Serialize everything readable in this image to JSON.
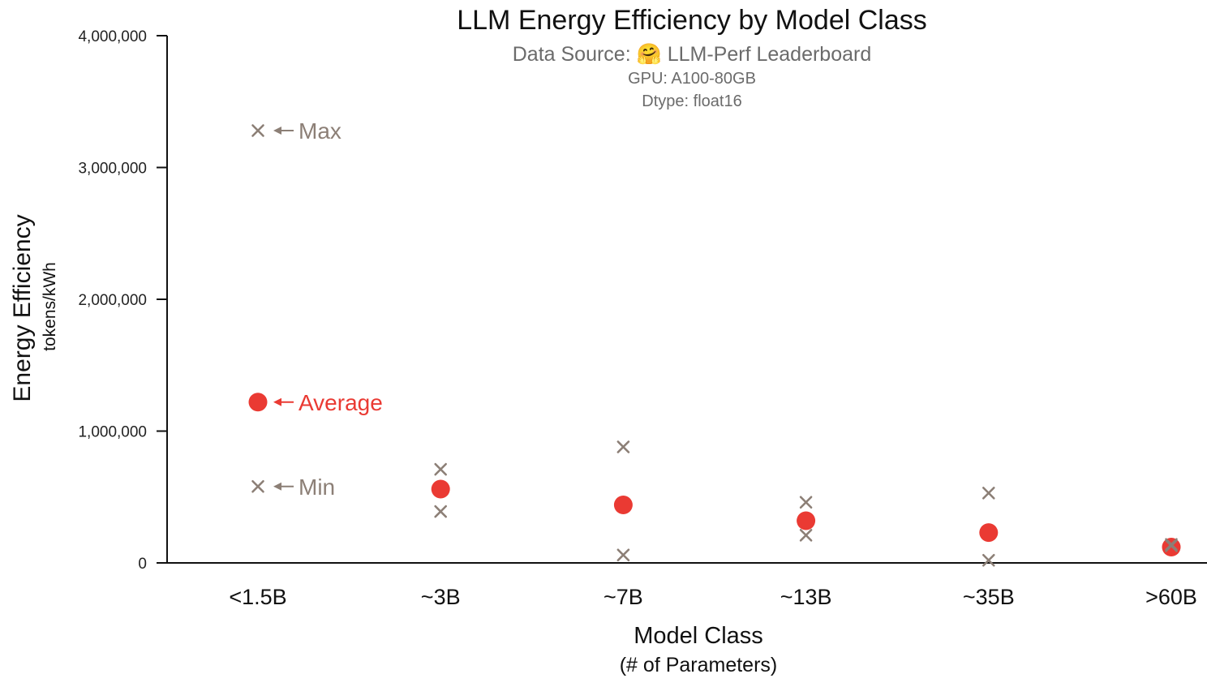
{
  "chart_data": {
    "type": "scatter",
    "title": "LLM Energy Efficiency by Model Class",
    "subtitle": {
      "source_prefix": "Data Source:",
      "source_emoji": "🤗",
      "source_name": "LLM-Perf Leaderboard",
      "gpu": "GPU: A100-80GB",
      "dtype": "Dtype: float16"
    },
    "xlabel": "Model Class",
    "xlabel_sub": "(# of Parameters)",
    "ylabel": "Energy Efficiency",
    "ylabel_unit": "tokens/kWh",
    "categories": [
      "<1.5B",
      "~3B",
      "~7B",
      "~13B",
      "~35B",
      ">60B"
    ],
    "ylim": [
      0,
      4000000
    ],
    "yticks": [
      0,
      1000000,
      2000000,
      3000000,
      4000000
    ],
    "ytick_labels": [
      "0",
      "1,000,000",
      "2,000,000",
      "3,000,000",
      "4,000,000"
    ],
    "series": [
      {
        "name": "Max",
        "marker": "x",
        "color": "#8c7f76",
        "values": [
          3280000,
          710000,
          880000,
          460000,
          530000,
          140000
        ]
      },
      {
        "name": "Average",
        "marker": "circle",
        "color": "#ea3a33",
        "values": [
          1220000,
          560000,
          440000,
          320000,
          230000,
          120000
        ]
      },
      {
        "name": "Min",
        "marker": "x",
        "color": "#8c7f76",
        "values": [
          580000,
          390000,
          60000,
          210000,
          20000,
          130000
        ]
      }
    ],
    "annotations": [
      {
        "series": "Max",
        "text": "Max",
        "color": "#8c7f76"
      },
      {
        "series": "Average",
        "text": "Average",
        "color": "#ea3a33"
      },
      {
        "series": "Min",
        "text": "Min",
        "color": "#8c7f76"
      }
    ],
    "grid": false,
    "legend": "none (inline annotations)"
  }
}
